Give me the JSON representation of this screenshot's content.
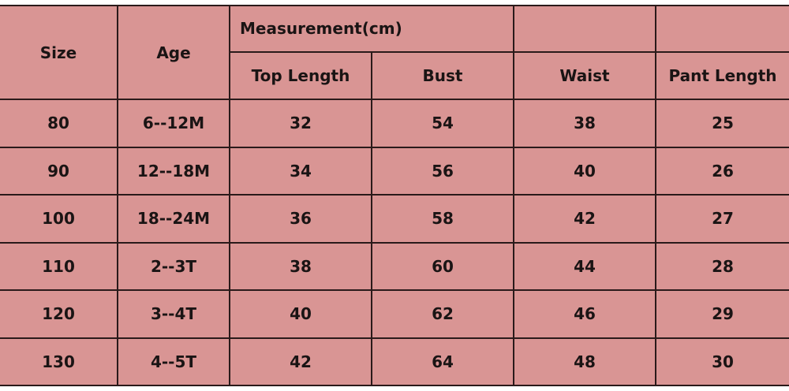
{
  "headers": {
    "size": "Size",
    "age": "Age",
    "measurement": "Measurement(cm)",
    "top_length": "Top Length",
    "bust": "Bust",
    "waist": "Waist",
    "pant_length": "Pant Length"
  },
  "rows": [
    [
      "80",
      "6--12M",
      "32",
      "54",
      "38",
      "25"
    ],
    [
      "90",
      "12--18M",
      "34",
      "56",
      "40",
      "26"
    ],
    [
      "100",
      "18--24M",
      "36",
      "58",
      "42",
      "27"
    ],
    [
      "110",
      "2--3T",
      "38",
      "60",
      "44",
      "28"
    ],
    [
      "120",
      "3--4T",
      "40",
      "62",
      "46",
      "29"
    ],
    [
      "130",
      "4--5T",
      "42",
      "64",
      "48",
      "30"
    ]
  ],
  "colors": {
    "background": "#d99594",
    "grid": "#2a1a1a"
  }
}
